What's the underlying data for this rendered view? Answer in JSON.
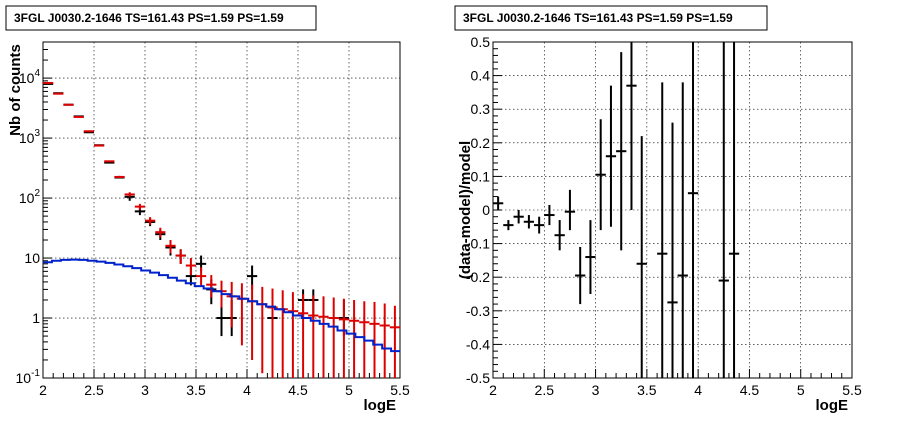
{
  "chart_data": [
    {
      "type": "scatter",
      "title": "3FGL J0030.2-1646 TS=161.43 PS=1.59 PS=1.59",
      "xlabel": "logE",
      "ylabel": "Nb of counts",
      "xlim": [
        2,
        5.5
      ],
      "ylim": [
        0.1,
        40000
      ],
      "yscale": "log",
      "grid": true,
      "x_ticks": [
        "2",
        "2.5",
        "3",
        "3.5",
        "4",
        "4.5",
        "5",
        "5.5"
      ],
      "y_ticks": [
        {
          "value": 0.1,
          "label": "10",
          "exp": "-1"
        },
        {
          "value": 1,
          "label": "1",
          "exp": ""
        },
        {
          "value": 10,
          "label": "10",
          "exp": ""
        },
        {
          "value": 100,
          "label": "10",
          "exp": "2"
        },
        {
          "value": 1000,
          "label": "10",
          "exp": "3"
        },
        {
          "value": 10000,
          "label": "10",
          "exp": "4"
        }
      ],
      "series": [
        {
          "color": "#000000",
          "xerr": 0.05,
          "points": [
            [
              2.05,
              8000,
              8000,
              8000
            ],
            [
              2.15,
              5600,
              5600,
              5600
            ],
            [
              2.25,
              3600,
              3600,
              3600
            ],
            [
              2.35,
              2300,
              2300,
              2300
            ],
            [
              2.45,
              1250,
              1250,
              1250
            ],
            [
              2.55,
              760,
              760,
              760
            ],
            [
              2.65,
              390,
              390,
              390
            ],
            [
              2.75,
              220,
              220,
              220
            ],
            [
              2.85,
              105,
              90,
              120
            ],
            [
              2.95,
              60,
              52,
              70
            ],
            [
              3.05,
              40,
              34,
              47
            ],
            [
              3.15,
              25,
              20,
              30
            ],
            [
              3.25,
              15,
              11,
              18
            ],
            [
              3.35,
              11,
              8,
              14
            ],
            [
              3.45,
              5,
              3.5,
              7
            ],
            [
              3.55,
              8,
              6,
              11
            ],
            [
              3.65,
              3,
              1.7,
              4.4
            ],
            [
              3.75,
              1,
              0.5,
              2
            ],
            [
              3.85,
              1,
              0.5,
              2
            ],
            [
              4.05,
              5,
              3,
              7.5
            ],
            [
              4.25,
              1,
              0.5,
              2
            ],
            [
              4.55,
              2,
              1,
              3
            ],
            [
              4.65,
              2,
              1,
              3
            ],
            [
              4.95,
              1,
              0.5,
              2
            ]
          ]
        },
        {
          "color": "#dd0000",
          "xerr": 0.05,
          "points": [
            [
              2.05,
              8300,
              8300,
              8300
            ],
            [
              2.15,
              5500,
              5500,
              5500
            ],
            [
              2.25,
              3600,
              3600,
              3600
            ],
            [
              2.35,
              2250,
              2250,
              2250
            ],
            [
              2.45,
              1300,
              1300,
              1300
            ],
            [
              2.55,
              750,
              750,
              750
            ],
            [
              2.65,
              410,
              410,
              410
            ],
            [
              2.75,
              225,
              215,
              235
            ],
            [
              2.85,
              115,
              106,
              125
            ],
            [
              2.95,
              72,
              64,
              80
            ],
            [
              3.05,
              42,
              36,
              48
            ],
            [
              3.15,
              27,
              22,
              32
            ],
            [
              3.25,
              16,
              12,
              20
            ],
            [
              3.35,
              11,
              8,
              14
            ],
            [
              3.45,
              7.5,
              5.2,
              10
            ],
            [
              3.55,
              5,
              3.5,
              7
            ],
            [
              3.65,
              3.6,
              2.2,
              5.2
            ],
            [
              3.75,
              2.8,
              1.5,
              4.2
            ],
            [
              3.85,
              2.3,
              0.7,
              4.0
            ],
            [
              3.95,
              2.1,
              0.35,
              3.8
            ],
            [
              4.05,
              1.9,
              0.2,
              3.6
            ],
            [
              4.15,
              1.7,
              0.12,
              3.3
            ],
            [
              4.25,
              1.5,
              0.1,
              3.1
            ],
            [
              4.35,
              1.4,
              0.1,
              2.9
            ],
            [
              4.45,
              1.3,
              0.1,
              2.7
            ],
            [
              4.55,
              1.2,
              0.1,
              2.5
            ],
            [
              4.65,
              1.1,
              0.1,
              2.4
            ],
            [
              4.75,
              1.05,
              0.1,
              2.3
            ],
            [
              4.85,
              1.0,
              0.1,
              2.2
            ],
            [
              4.95,
              0.95,
              0.1,
              2.1
            ],
            [
              5.05,
              0.9,
              0.1,
              2.0
            ],
            [
              5.15,
              0.85,
              0.1,
              1.9
            ],
            [
              5.25,
              0.8,
              0.1,
              1.85
            ],
            [
              5.35,
              0.75,
              0.1,
              1.75
            ],
            [
              5.45,
              0.7,
              0.1,
              1.6
            ]
          ]
        },
        {
          "color": "#0022cc",
          "step": true,
          "values": [
            8.5,
            9.0,
            9.3,
            9.4,
            9.3,
            9.0,
            8.7,
            8.3,
            7.8,
            7.3,
            6.8,
            6.2,
            5.7,
            5.2,
            4.7,
            4.2,
            3.8,
            3.4,
            3.1,
            2.8,
            2.5,
            2.3,
            2.1,
            1.9,
            1.7,
            1.55,
            1.4,
            1.25,
            1.1,
            1.0,
            0.9,
            0.8,
            0.72,
            0.62,
            0.55,
            0.48,
            0.42,
            0.36,
            0.31,
            0.28
          ],
          "bin_width": 0.0875
        }
      ]
    },
    {
      "type": "scatter",
      "title": "3FGL J0030.2-1646 TS=161.43 PS=1.59 PS=1.59",
      "xlabel": "logE",
      "ylabel": "(data-model)/model",
      "xlim": [
        2,
        5.5
      ],
      "ylim": [
        -0.5,
        0.5
      ],
      "grid": true,
      "x_ticks": [
        "2",
        "2.5",
        "3",
        "3.5",
        "4",
        "4.5",
        "5",
        "5.5"
      ],
      "y_ticks": [
        "-0.5",
        "-0.4",
        "-0.3",
        "-0.2",
        "-0.1",
        "0",
        "0.1",
        "0.2",
        "0.3",
        "0.4",
        "0.5"
      ],
      "series": [
        {
          "color": "#000000",
          "xerr": 0.05,
          "points": [
            [
              2.05,
              0.02,
              0.0,
              0.04
            ],
            [
              2.15,
              -0.045,
              -0.06,
              -0.03
            ],
            [
              2.25,
              -0.02,
              -0.04,
              0.0
            ],
            [
              2.35,
              -0.035,
              -0.055,
              -0.015
            ],
            [
              2.45,
              -0.045,
              -0.07,
              -0.02
            ],
            [
              2.55,
              -0.015,
              -0.045,
              0.015
            ],
            [
              2.65,
              -0.075,
              -0.12,
              -0.03
            ],
            [
              2.75,
              -0.005,
              -0.06,
              0.06
            ],
            [
              2.85,
              -0.195,
              -0.28,
              -0.11
            ],
            [
              2.95,
              -0.14,
              -0.25,
              -0.03
            ],
            [
              3.05,
              0.105,
              -0.06,
              0.27
            ],
            [
              3.15,
              0.16,
              -0.05,
              0.37
            ],
            [
              3.25,
              0.175,
              -0.12,
              0.47
            ],
            [
              3.35,
              0.37,
              0.0,
              0.5
            ],
            [
              3.45,
              -0.16,
              -0.5,
              0.22
            ],
            [
              3.65,
              -0.13,
              -0.5,
              0.38
            ],
            [
              3.75,
              -0.275,
              -0.5,
              0.26
            ],
            [
              3.85,
              -0.195,
              -0.5,
              0.38
            ],
            [
              3.95,
              0.05,
              -0.5,
              0.5
            ],
            [
              4.25,
              -0.21,
              -0.5,
              0.5
            ],
            [
              4.35,
              -0.13,
              -0.5,
              0.5
            ]
          ]
        }
      ]
    }
  ]
}
